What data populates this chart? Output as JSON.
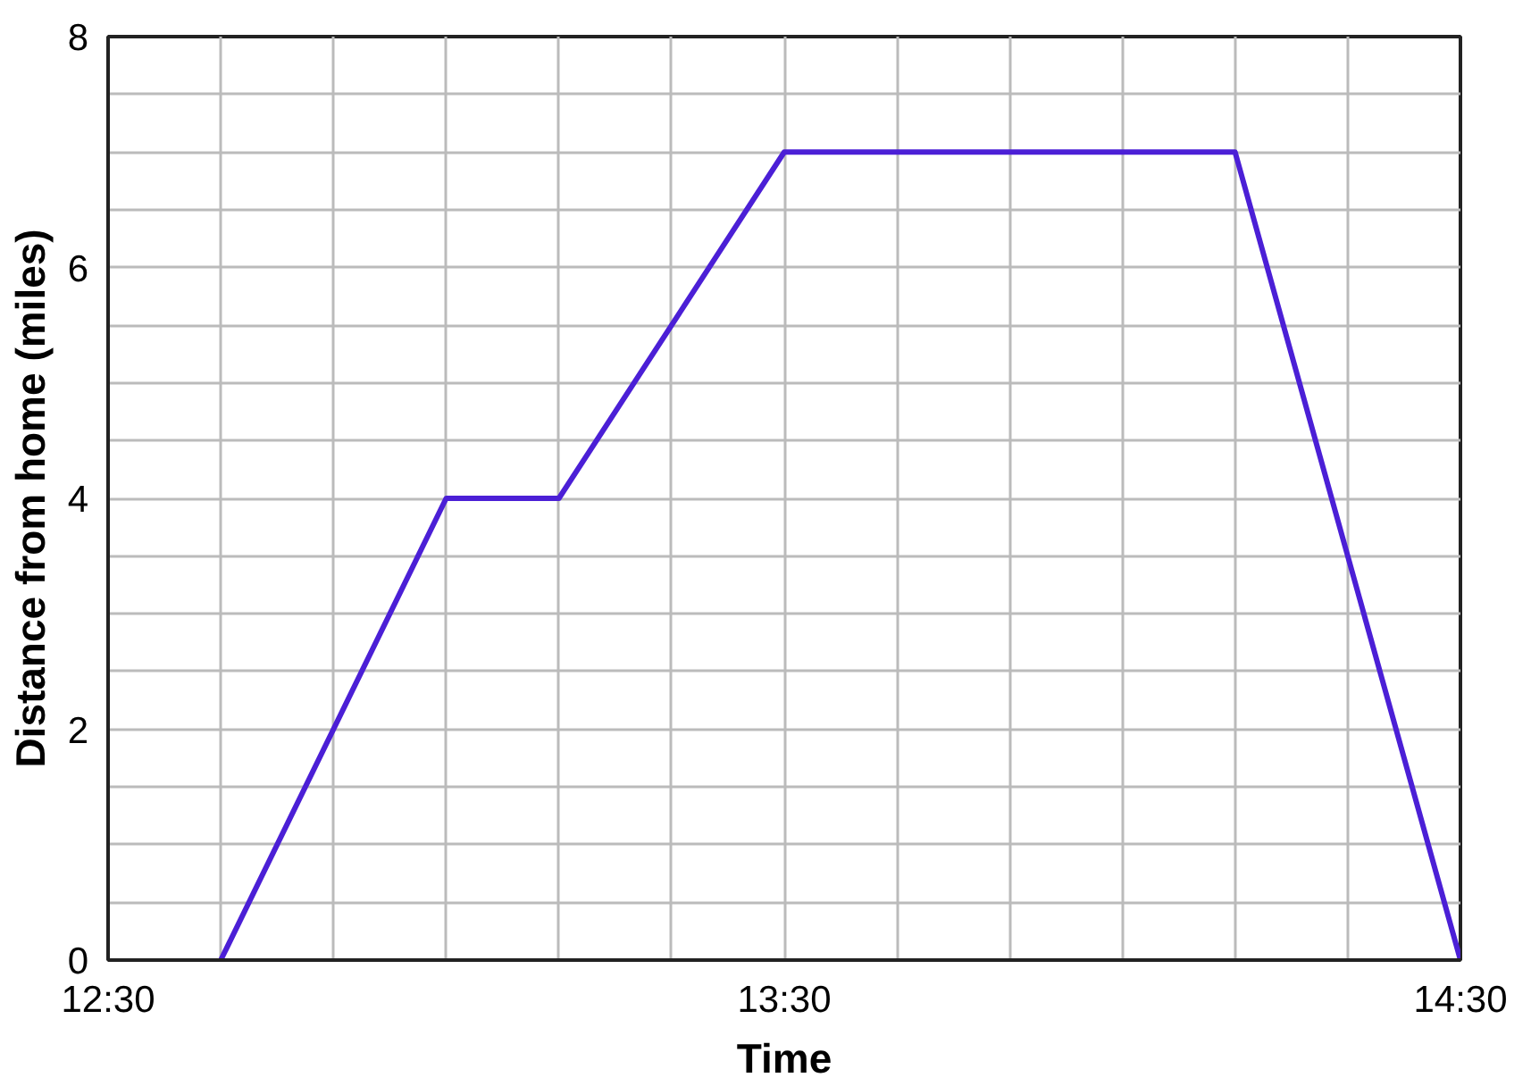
{
  "chart_data": {
    "type": "line",
    "xlabel": "Time",
    "ylabel": "Distance from home (miles)",
    "x": [
      12.6667,
      13.0,
      13.1667,
      13.5,
      14.1667,
      14.5
    ],
    "series": [
      {
        "color": "#4b1fd6",
        "values": [
          0,
          4,
          4,
          7,
          7,
          0
        ]
      }
    ],
    "xlim": [
      12.5,
      14.5
    ],
    "xticks": [
      {
        "value": 12.5,
        "label": "12:30"
      },
      {
        "value": 12.6667,
        "label": null
      },
      {
        "value": 12.8333,
        "label": null
      },
      {
        "value": 13.0,
        "label": null
      },
      {
        "value": 13.1667,
        "label": null
      },
      {
        "value": 13.3333,
        "label": null
      },
      {
        "value": 13.5,
        "label": "13:30"
      },
      {
        "value": 13.6667,
        "label": null
      },
      {
        "value": 13.8333,
        "label": null
      },
      {
        "value": 14.0,
        "label": null
      },
      {
        "value": 14.1667,
        "label": null
      },
      {
        "value": 14.3333,
        "label": null
      },
      {
        "value": 14.5,
        "label": "14:30"
      }
    ],
    "ylim": [
      0,
      8
    ],
    "yticks": [
      0,
      {
        "value": 0.5,
        "label": null
      },
      {
        "value": 1,
        "label": null
      },
      {
        "value": 1.5,
        "label": null
      },
      2,
      {
        "value": 2.5,
        "label": null
      },
      {
        "value": 3,
        "label": null
      },
      {
        "value": 3.5,
        "label": null
      },
      4,
      {
        "value": 4.5,
        "label": null
      },
      {
        "value": 5,
        "label": null
      },
      {
        "value": 5.5,
        "label": null
      },
      6,
      {
        "value": 6.5,
        "label": null
      },
      {
        "value": 7,
        "label": null
      },
      {
        "value": 7.5,
        "label": null
      },
      8
    ],
    "grid": true,
    "line_style": "solid"
  }
}
